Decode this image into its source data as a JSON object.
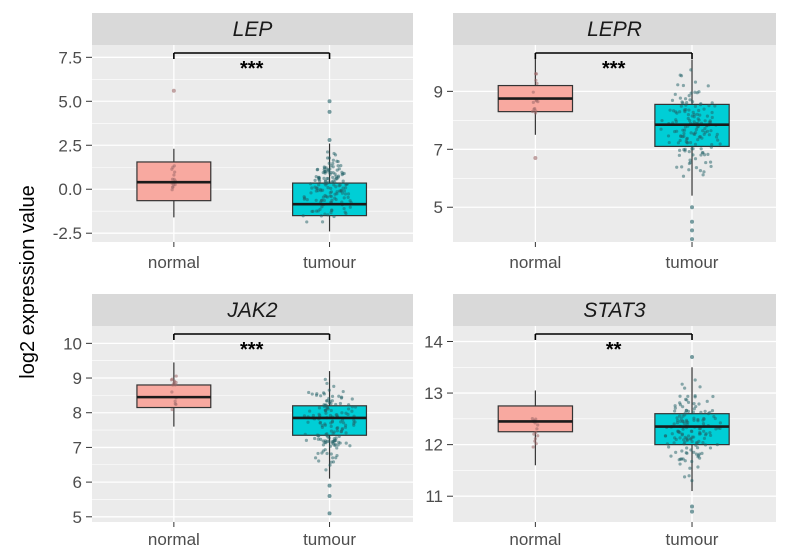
{
  "chart_data": {
    "type": "box",
    "ylabel": "log2 expression value",
    "categories": [
      "normal",
      "tumour"
    ],
    "grid": true,
    "colors": {
      "normal": "#F8A9A0",
      "tumour": "#00CED6",
      "panel": "#EBEBEB",
      "strip": "#D9D9D9",
      "dot_normal": "#9E6A6A",
      "dot_tumour": "#1F5F66"
    },
    "panels": [
      {
        "title": "LEP",
        "ylim": [
          -3.0,
          8.2
        ],
        "yticks": [
          "-2.5",
          "0.0",
          "2.5",
          "5.0",
          "7.5"
        ],
        "significance": "***",
        "boxes": [
          {
            "group": "normal",
            "whisker_low": -1.6,
            "q1": -0.65,
            "median": 0.4,
            "q3": 1.55,
            "whisker_high": 2.3,
            "outliers": [
              5.6
            ]
          },
          {
            "group": "tumour",
            "whisker_low": -2.4,
            "q1": -1.5,
            "median": -0.85,
            "q3": 0.35,
            "whisker_high": 2.6,
            "outliers": [
              4.4,
              5.0,
              2.8
            ]
          }
        ]
      },
      {
        "title": "LEPR",
        "ylim": [
          3.8,
          10.6
        ],
        "yticks": [
          "5",
          "7",
          "9"
        ],
        "significance": "***",
        "boxes": [
          {
            "group": "normal",
            "whisker_low": 7.5,
            "q1": 8.3,
            "median": 8.75,
            "q3": 9.2,
            "whisker_high": 10.2,
            "outliers": [
              6.7
            ]
          },
          {
            "group": "tumour",
            "whisker_low": 5.4,
            "q1": 7.1,
            "median": 7.85,
            "q3": 8.55,
            "whisker_high": 10.1,
            "outliers": [
              4.5,
              4.2,
              3.9,
              5.0
            ]
          }
        ]
      },
      {
        "title": "JAK2",
        "ylim": [
          4.85,
          10.5
        ],
        "yticks": [
          "5",
          "6",
          "7",
          "8",
          "9",
          "10"
        ],
        "significance": "***",
        "boxes": [
          {
            "group": "normal",
            "whisker_low": 7.6,
            "q1": 8.15,
            "median": 8.45,
            "q3": 8.8,
            "whisker_high": 9.45,
            "outliers": []
          },
          {
            "group": "tumour",
            "whisker_low": 6.1,
            "q1": 7.35,
            "median": 7.85,
            "q3": 8.2,
            "whisker_high": 9.2,
            "outliers": [
              5.9,
              5.6,
              5.1
            ]
          }
        ]
      },
      {
        "title": "STAT3",
        "ylim": [
          10.5,
          14.3
        ],
        "yticks": [
          "11",
          "12",
          "13",
          "14"
        ],
        "significance": "**",
        "boxes": [
          {
            "group": "normal",
            "whisker_low": 11.6,
            "q1": 12.25,
            "median": 12.45,
            "q3": 12.75,
            "whisker_high": 13.05,
            "outliers": []
          },
          {
            "group": "tumour",
            "whisker_low": 11.1,
            "q1": 12.0,
            "median": 12.35,
            "q3": 12.6,
            "whisker_high": 13.5,
            "outliers": [
              10.8,
              10.7,
              13.7
            ]
          }
        ]
      }
    ]
  }
}
